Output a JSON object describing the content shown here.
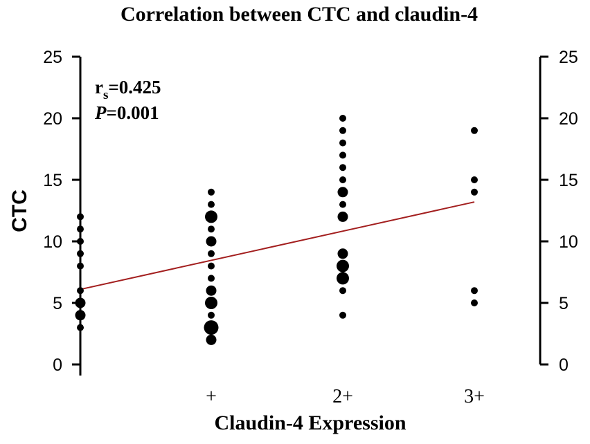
{
  "chart_data": {
    "type": "scatter",
    "title": "Correlation between CTC and claudin-4",
    "xlabel": "Claudin-4  Expression",
    "ylabel": "CTC",
    "categories": [
      "",
      "+",
      "2+",
      "3+"
    ],
    "ylim": [
      0,
      25
    ],
    "yticks": [
      0,
      5,
      10,
      15,
      20,
      25
    ],
    "right_axis": true,
    "grid": false,
    "stats": {
      "r_prefix": "r",
      "r_sub": "s",
      "r_value": "=0.425",
      "p_italic": "P",
      "p_value": "=0.001"
    },
    "regression": {
      "x": [
        0,
        3
      ],
      "y": [
        6.1,
        13.2
      ]
    },
    "points": [
      {
        "category": 0,
        "y": 3,
        "n": 1
      },
      {
        "category": 0,
        "y": 4,
        "n": 2
      },
      {
        "category": 0,
        "y": 5,
        "n": 2
      },
      {
        "category": 0,
        "y": 6,
        "n": 1
      },
      {
        "category": 0,
        "y": 8,
        "n": 1
      },
      {
        "category": 0,
        "y": 9,
        "n": 1
      },
      {
        "category": 0,
        "y": 10,
        "n": 1
      },
      {
        "category": 0,
        "y": 11,
        "n": 1
      },
      {
        "category": 0,
        "y": 12,
        "n": 1
      },
      {
        "category": 1,
        "y": 2,
        "n": 2
      },
      {
        "category": 1,
        "y": 3,
        "n": 4
      },
      {
        "category": 1,
        "y": 4,
        "n": 1
      },
      {
        "category": 1,
        "y": 5,
        "n": 3
      },
      {
        "category": 1,
        "y": 6,
        "n": 2
      },
      {
        "category": 1,
        "y": 7,
        "n": 1
      },
      {
        "category": 1,
        "y": 8,
        "n": 1
      },
      {
        "category": 1,
        "y": 9,
        "n": 1
      },
      {
        "category": 1,
        "y": 10,
        "n": 2
      },
      {
        "category": 1,
        "y": 11,
        "n": 1
      },
      {
        "category": 1,
        "y": 12,
        "n": 3
      },
      {
        "category": 1,
        "y": 13,
        "n": 1
      },
      {
        "category": 1,
        "y": 14,
        "n": 1
      },
      {
        "category": 2,
        "y": 4,
        "n": 1
      },
      {
        "category": 2,
        "y": 6,
        "n": 1
      },
      {
        "category": 2,
        "y": 7,
        "n": 3
      },
      {
        "category": 2,
        "y": 8,
        "n": 3
      },
      {
        "category": 2,
        "y": 9,
        "n": 2
      },
      {
        "category": 2,
        "y": 12,
        "n": 2
      },
      {
        "category": 2,
        "y": 13,
        "n": 1
      },
      {
        "category": 2,
        "y": 14,
        "n": 2
      },
      {
        "category": 2,
        "y": 15,
        "n": 1
      },
      {
        "category": 2,
        "y": 16,
        "n": 1
      },
      {
        "category": 2,
        "y": 17,
        "n": 1
      },
      {
        "category": 2,
        "y": 18,
        "n": 1
      },
      {
        "category": 2,
        "y": 19,
        "n": 1
      },
      {
        "category": 2,
        "y": 20,
        "n": 1
      },
      {
        "category": 3,
        "y": 5,
        "n": 1
      },
      {
        "category": 3,
        "y": 6,
        "n": 1
      },
      {
        "category": 3,
        "y": 14,
        "n": 1
      },
      {
        "category": 3,
        "y": 15,
        "n": 1
      },
      {
        "category": 3,
        "y": 19,
        "n": 1
      }
    ],
    "colors": {
      "points": "#000000",
      "regression": "#a31f1f",
      "axes": "#000000"
    }
  }
}
